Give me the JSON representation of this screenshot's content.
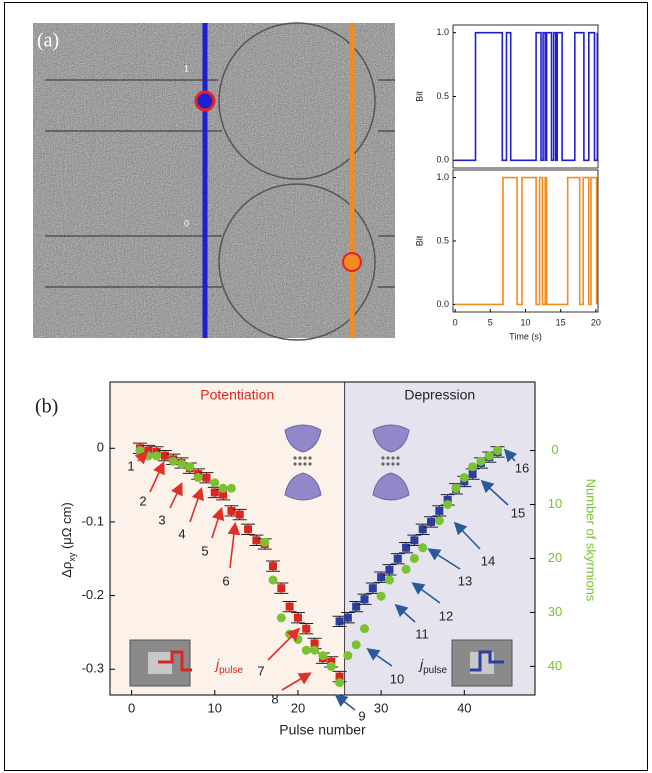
{
  "panel_labels": [
    "(a)",
    "(b)"
  ],
  "image_labels": [
    "1",
    "0"
  ],
  "chart_data": [
    {
      "type": "line",
      "y_label": "Bit",
      "x": [
        0,
        2.9,
        2.9,
        6.7,
        6.7,
        7.3,
        7.3,
        7.9,
        7.9,
        11.5,
        11.5,
        12.2,
        12.2,
        12.5,
        12.5,
        12.8,
        12.8,
        13,
        13,
        13.7,
        13.7,
        14,
        14,
        14.3,
        14.3,
        14.5,
        14.5,
        15.2,
        15.2,
        17,
        17,
        18.3,
        18.3,
        19,
        19,
        19.8,
        19.8,
        20.2,
        20.2
      ],
      "series": [
        {
          "color": "#1f1fcf",
          "values": [
            0,
            0,
            1,
            1,
            0,
            0,
            1,
            1,
            0,
            0,
            1,
            1,
            0,
            0,
            1,
            1,
            0,
            0,
            1,
            1,
            0,
            0,
            1,
            1,
            0,
            0,
            1,
            1,
            0,
            0,
            1,
            1,
            0,
            0,
            1,
            1,
            0,
            0,
            1
          ]
        }
      ],
      "xlim": [
        -0.3,
        20.3
      ],
      "ylim": [
        -0.06,
        1.06
      ],
      "yticks": [
        {
          "value": 0,
          "label": "0.0"
        },
        {
          "value": 0.5,
          "label": "0.5"
        },
        {
          "value": 1,
          "label": "1.0"
        }
      ]
    },
    {
      "type": "line",
      "y_label": "Bit",
      "x_label": "Time (s)",
      "x": [
        0,
        6.8,
        6.8,
        8.8,
        8.8,
        9.5,
        9.5,
        11.5,
        11.5,
        12,
        12,
        12.4,
        12.4,
        12.8,
        12.8,
        13,
        13,
        16,
        16,
        17.7,
        17.7,
        18.2,
        18.2,
        19,
        19,
        19.3,
        19.3,
        20.1,
        20.1
      ],
      "series": [
        {
          "color": "#f28c1e",
          "values": [
            0,
            0,
            1,
            1,
            0,
            0,
            1,
            1,
            0,
            0,
            1,
            1,
            0,
            0,
            1,
            1,
            0,
            0,
            1,
            1,
            0,
            0,
            1,
            1,
            0,
            0,
            1,
            1,
            0
          ]
        }
      ],
      "xlim": [
        -0.3,
        20.3
      ],
      "ylim": [
        -0.06,
        1.06
      ],
      "xticks": [
        0,
        5,
        10,
        15,
        20
      ],
      "yticks": [
        {
          "value": 0,
          "label": "0.0"
        },
        {
          "value": 0.5,
          "label": "0.5"
        },
        {
          "value": 1,
          "label": "1.0"
        }
      ]
    },
    {
      "type": "scatter",
      "x_label": "Pulse number",
      "y_label": {
        "symbol": "Δρ",
        "subscript": "xy",
        "unit": " (μΩ cm)"
      },
      "y2_label": "Number of skyrmions",
      "regions": [
        "Potentiation",
        "Depression"
      ],
      "phase_boundary": 25.6,
      "region_colors": [
        "#fcf2ea",
        "#e4e3ee"
      ],
      "pulse_labels": [
        "1",
        "2",
        "3",
        "4",
        "5",
        "6",
        "7",
        "8",
        "9",
        "10",
        "11",
        "12",
        "13",
        "14",
        "15",
        "16"
      ],
      "insets": [
        {
          "symbol": "j",
          "subscript": "pulse"
        },
        {
          "symbol": "j",
          "subscript": "pulse"
        }
      ],
      "xlim": [
        -2.6,
        48.5
      ],
      "ylim": [
        -0.335,
        0.09
      ],
      "y2lim": [
        45.3,
        -12.7
      ],
      "xticks": [
        0,
        10,
        20,
        30,
        40
      ],
      "yticks": [
        0,
        -0.1,
        -0.2,
        -0.3
      ],
      "y2ticks": [
        0,
        10,
        20,
        30,
        40
      ],
      "series": [
        {
          "color": "#d9271f",
          "marker": "square",
          "error": 0.007,
          "x": [
            1,
            2,
            3,
            4,
            5,
            6,
            7,
            8,
            9,
            10,
            11,
            12,
            13,
            14,
            15,
            16,
            17,
            18,
            19,
            20,
            21,
            22,
            23,
            24,
            25
          ],
          "values": [
            0,
            -0.003,
            -0.005,
            -0.01,
            -0.015,
            -0.02,
            -0.027,
            -0.035,
            -0.04,
            -0.06,
            -0.063,
            -0.085,
            -0.09,
            -0.11,
            -0.125,
            -0.13,
            -0.16,
            -0.19,
            -0.215,
            -0.23,
            -0.245,
            -0.265,
            -0.285,
            -0.29,
            -0.31
          ]
        },
        {
          "color": "#2b3d9f",
          "marker": "square",
          "error": 0.007,
          "x": [
            25,
            26,
            27,
            28,
            29,
            30,
            31,
            32,
            33,
            34,
            35,
            36,
            37,
            38,
            39,
            40,
            41,
            42,
            43,
            44
          ],
          "values": [
            -0.235,
            -0.23,
            -0.215,
            -0.205,
            -0.19,
            -0.175,
            -0.165,
            -0.15,
            -0.135,
            -0.125,
            -0.11,
            -0.1,
            -0.085,
            -0.07,
            -0.055,
            -0.045,
            -0.035,
            -0.02,
            -0.012,
            -0.005
          ]
        },
        {
          "color": "#7ac231",
          "marker": "circle",
          "axis": "y2",
          "x": [
            1,
            2,
            3,
            5,
            6,
            7,
            8,
            10,
            11,
            12,
            16,
            17,
            18,
            19,
            20,
            21,
            22,
            23,
            24,
            25,
            26,
            27,
            28,
            30,
            31,
            33,
            34,
            35,
            37,
            38,
            39,
            40,
            41,
            42,
            43,
            44
          ],
          "values": [
            0,
            1,
            1,
            2,
            2.5,
            3,
            5,
            6,
            7,
            7,
            17,
            24,
            31,
            34,
            35,
            37,
            37,
            38,
            40,
            43,
            38,
            36,
            33,
            27,
            24,
            22,
            20,
            18,
            13,
            10,
            7,
            5,
            3,
            2,
            1,
            0
          ]
        }
      ]
    }
  ]
}
